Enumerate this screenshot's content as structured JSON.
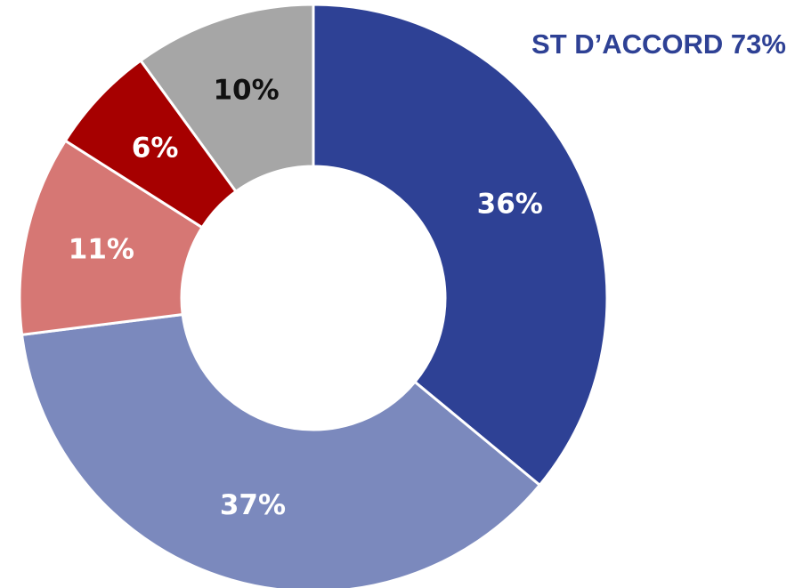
{
  "chart_data": {
    "type": "pie",
    "annotation": "ST D’ACCORD 73%",
    "annotation_color": "#2e4195",
    "values": [
      36,
      37,
      11,
      6,
      10
    ],
    "value_labels": [
      "36%",
      "37%",
      "11%",
      "6%",
      "10%"
    ],
    "colors": [
      "#2e4195",
      "#7b89bd",
      "#d67774",
      "#a60000",
      "#a6a6a6"
    ],
    "label_colors": [
      "#ffffff",
      "#ffffff",
      "#ffffff",
      "#ffffff",
      "#111111"
    ]
  }
}
